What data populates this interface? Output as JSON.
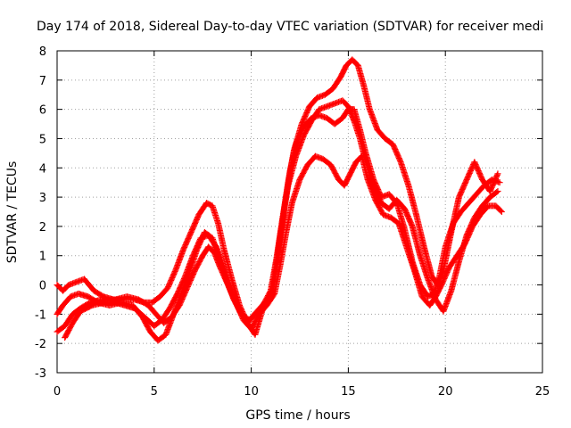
{
  "chart_data": {
    "type": "scatter",
    "title": "Day 174 of 2018, Sidereal Day-to-day VTEC variation (SDTVAR) for receiver medi",
    "xlabel": "GPS time / hours",
    "ylabel": "SDTVAR / TECUs",
    "xlim": [
      0,
      25
    ],
    "ylim": [
      -3,
      8
    ],
    "xticks": [
      0,
      5,
      10,
      15,
      20,
      25
    ],
    "yticks": [
      -3,
      -2,
      -1,
      0,
      1,
      2,
      3,
      4,
      5,
      6,
      7,
      8
    ],
    "grid": true,
    "marker": "+",
    "color": "#ff0000",
    "series": [
      {
        "x": [
          0.0,
          0.4,
          0.8,
          1.2,
          1.7,
          2.3,
          3.0,
          3.6,
          4.2,
          4.7,
          5.1,
          5.5,
          5.9,
          6.3,
          6.7,
          7.1,
          7.5,
          7.8,
          8.1,
          8.4,
          8.8,
          9.2,
          9.6,
          10.0,
          10.4,
          10.8,
          11.2,
          11.5,
          11.8,
          12.1,
          12.5,
          12.9,
          13.3,
          13.7,
          14.1,
          14.5,
          14.8,
          15.1,
          15.4,
          15.7,
          16.0,
          16.4,
          16.8,
          17.2,
          17.6,
          18.0,
          18.4,
          18.8,
          19.2,
          19.5,
          19.8,
          20.2,
          20.6,
          21.0,
          21.4,
          21.8,
          22.2,
          22.6,
          22.9
        ],
        "y": [
          -1.6,
          -1.4,
          -1.0,
          -0.8,
          -0.6,
          -0.5,
          -0.5,
          -0.4,
          -0.5,
          -0.7,
          -1.0,
          -1.3,
          -1.1,
          -0.7,
          -0.1,
          0.5,
          1.0,
          1.3,
          1.1,
          0.6,
          0.0,
          -0.6,
          -1.2,
          -1.5,
          -1.0,
          -0.7,
          -0.3,
          0.7,
          1.8,
          2.8,
          3.6,
          4.1,
          4.4,
          4.3,
          4.1,
          3.6,
          3.4,
          3.8,
          4.2,
          4.4,
          3.6,
          2.9,
          2.4,
          2.3,
          2.1,
          1.3,
          0.5,
          -0.4,
          -0.7,
          -0.4,
          0.0,
          0.6,
          1.0,
          1.4,
          2.0,
          2.4,
          2.7,
          2.7,
          2.5
        ]
      },
      {
        "x": [
          0.0,
          0.3,
          0.7,
          1.1,
          1.6,
          2.1,
          2.7,
          3.3,
          3.9,
          4.4,
          4.8,
          5.2,
          5.6,
          6.0,
          6.4,
          6.8,
          7.2,
          7.6,
          8.0,
          8.3,
          8.7,
          9.1,
          9.5,
          9.9,
          10.3,
          10.7,
          11.1,
          11.4,
          11.7,
          12.0,
          12.3,
          12.7,
          13.1,
          13.5,
          13.9,
          14.3,
          14.7,
          15.0,
          15.3,
          15.6,
          15.9,
          16.3,
          16.7,
          17.1,
          17.5,
          17.9,
          18.3,
          18.7,
          19.1,
          19.4,
          19.7,
          20.0,
          20.4,
          20.8,
          21.2,
          21.6,
          22.0,
          22.4,
          22.8
        ],
        "y": [
          -1.0,
          -0.7,
          -0.4,
          -0.3,
          -0.4,
          -0.6,
          -0.7,
          -0.6,
          -0.7,
          -1.1,
          -1.6,
          -1.9,
          -1.7,
          -1.0,
          -0.3,
          0.4,
          1.2,
          1.8,
          1.6,
          1.0,
          0.2,
          -0.5,
          -1.0,
          -1.2,
          -0.9,
          -0.6,
          -0.3,
          1.0,
          2.6,
          3.9,
          4.8,
          5.4,
          5.7,
          5.8,
          5.7,
          5.5,
          5.7,
          6.0,
          6.0,
          5.3,
          4.5,
          3.6,
          3.0,
          3.1,
          2.8,
          1.9,
          0.8,
          0.0,
          -0.4,
          -0.3,
          0.3,
          1.3,
          2.1,
          2.5,
          2.8,
          3.1,
          3.4,
          3.6,
          3.5
        ]
      },
      {
        "x": [
          0.0,
          0.3,
          0.6,
          1.0,
          1.4,
          1.9,
          2.4,
          2.9,
          3.5,
          4.0,
          4.5,
          4.9,
          5.3,
          5.7,
          6.1,
          6.5,
          6.9,
          7.3,
          7.7,
          8.0,
          8.3,
          8.6,
          9.0,
          9.4,
          9.8,
          10.2,
          10.6,
          11.0,
          11.3,
          11.6,
          11.9,
          12.2,
          12.6,
          13.0,
          13.4,
          13.8,
          14.2,
          14.6,
          14.9,
          15.2,
          15.5,
          15.8,
          16.1,
          16.5,
          16.9,
          17.3,
          17.7,
          18.1,
          18.5,
          18.9,
          19.3,
          19.6,
          19.9,
          20.3,
          20.7,
          21.1,
          21.5,
          21.9,
          22.3,
          22.7
        ],
        "y": [
          0.0,
          -0.2,
          0.0,
          0.1,
          0.2,
          -0.2,
          -0.4,
          -0.5,
          -0.5,
          -0.5,
          -0.6,
          -0.6,
          -0.4,
          -0.1,
          0.5,
          1.2,
          1.8,
          2.4,
          2.8,
          2.7,
          2.1,
          1.2,
          0.2,
          -0.7,
          -1.3,
          -1.7,
          -0.8,
          -0.5,
          0.8,
          2.2,
          3.5,
          4.6,
          5.5,
          6.1,
          6.4,
          6.5,
          6.7,
          7.1,
          7.5,
          7.7,
          7.5,
          6.8,
          6.0,
          5.3,
          5.0,
          4.8,
          4.2,
          3.4,
          2.4,
          1.3,
          0.3,
          0.0,
          0.5,
          1.8,
          3.0,
          3.6,
          4.2,
          3.6,
          3.2,
          3.8
        ]
      },
      {
        "x": [
          0.4,
          0.8,
          1.2,
          1.8,
          2.4,
          3.0,
          3.5,
          4.0,
          4.5,
          5.0,
          5.4,
          5.8,
          6.2,
          6.6,
          7.0,
          7.4,
          7.8,
          8.2,
          8.6,
          9.0,
          9.4,
          9.8,
          10.2,
          10.6,
          11.0,
          11.3,
          11.6,
          11.9,
          12.3,
          12.7,
          13.1,
          13.5,
          13.9,
          14.3,
          14.7,
          15.0,
          15.3,
          15.6,
          15.9,
          16.3,
          16.7,
          17.1,
          17.5,
          17.9,
          18.3,
          18.7,
          19.1,
          19.5,
          19.9,
          20.3,
          20.7,
          21.1,
          21.5,
          21.9,
          22.3,
          22.7
        ],
        "y": [
          -1.8,
          -1.3,
          -0.9,
          -0.7,
          -0.6,
          -0.6,
          -0.7,
          -0.8,
          -1.1,
          -1.4,
          -1.2,
          -0.8,
          -0.3,
          0.3,
          1.0,
          1.6,
          1.7,
          1.3,
          0.6,
          -0.2,
          -0.9,
          -1.3,
          -1.0,
          -0.7,
          -0.2,
          0.9,
          2.2,
          3.4,
          4.4,
          5.1,
          5.6,
          6.0,
          6.1,
          6.2,
          6.3,
          6.1,
          5.6,
          5.0,
          4.2,
          3.4,
          2.8,
          2.6,
          2.9,
          2.6,
          2.0,
          1.0,
          0.2,
          -0.5,
          -0.9,
          -0.2,
          0.8,
          1.7,
          2.3,
          2.7,
          3.0,
          3.2
        ]
      }
    ]
  }
}
